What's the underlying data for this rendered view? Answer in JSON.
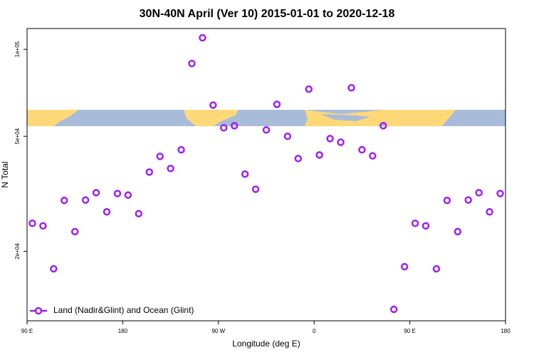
{
  "chart_data": {
    "type": "scatter",
    "title": "30N-40N April (Ver 10)   2015-01-01 to 2020-12-18",
    "xlabel": "Longitude (deg E)",
    "ylabel": "N Total",
    "x": [
      95,
      105,
      115,
      125,
      135,
      145,
      155,
      165,
      175,
      185,
      195,
      205,
      215,
      225,
      235,
      245,
      255,
      265,
      275,
      285,
      295,
      305,
      315,
      325,
      335,
      345,
      355,
      365,
      375,
      385,
      395,
      405,
      415,
      425,
      435,
      445,
      455,
      465,
      475,
      485,
      495,
      505,
      515,
      525,
      535
    ],
    "series": [
      {
        "name": "Land (Nadir&Glint) and Ocean (Glint)",
        "color": "#a020f0",
        "values": [
          25000,
          24500,
          17400,
          30000,
          23400,
          30100,
          31900,
          27400,
          31700,
          31300,
          27000,
          37600,
          42600,
          38700,
          44900,
          89300,
          109600,
          64100,
          53500,
          54400,
          37000,
          32800,
          52600,
          64500,
          50000,
          41900,
          72800,
          43100,
          49100,
          47700,
          73600,
          44900,
          42800,
          54400,
          12600,
          17700,
          25000,
          24500,
          17400,
          30000,
          23400,
          30100,
          31900,
          27400,
          31700
        ]
      }
    ],
    "xlim": [
      90,
      540
    ],
    "xticks": [
      {
        "value": 90,
        "label": "90 E"
      },
      180,
      {
        "value": 270,
        "label": "90 W"
      },
      {
        "value": 360,
        "label": "0"
      },
      {
        "value": 450,
        "label": "90 E"
      },
      {
        "value": 540,
        "label": "180"
      }
    ],
    "ylim": [
      11500,
      118000
    ],
    "ylog": true,
    "yticks": [
      {
        "value": 100000,
        "label": "1e+05"
      },
      {
        "value": 50000,
        "label": "5e+04"
      },
      {
        "value": 20000,
        "label": "2e+04"
      }
    ],
    "legend": "bottom-left"
  }
}
